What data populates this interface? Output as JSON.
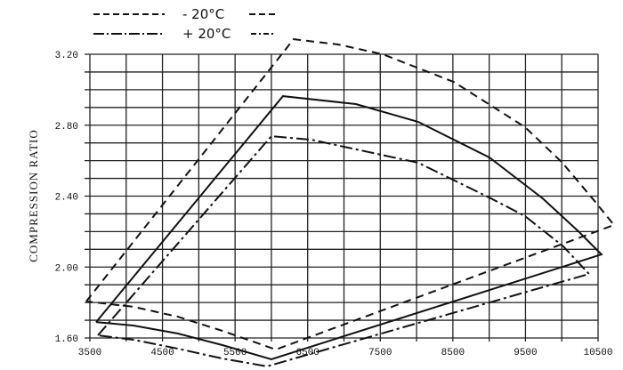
{
  "chart_data": {
    "type": "line",
    "title": "",
    "xlabel": "",
    "ylabel": "COMPRESSION RATIO",
    "xlim": [
      3500,
      10500
    ],
    "ylim": [
      1.6,
      3.2
    ],
    "x_ticks": [
      "3500",
      "4500",
      "5500",
      "6500",
      "7500",
      "8500",
      "9500",
      "10500"
    ],
    "y_ticks": [
      "1.60",
      "2.00",
      "2.40",
      "2.80",
      "3.20"
    ],
    "grid": true,
    "legend_position": "top",
    "legend": [
      {
        "label": "- 20°C",
        "style": "dashed"
      },
      {
        "label": "+ 20°C",
        "style": "dash-dot"
      }
    ],
    "color": "#111111",
    "series": [
      {
        "name": "- 20°C",
        "style": "dashed",
        "points": [
          [
            3450,
            1.806
          ],
          [
            6306,
            3.285
          ],
          [
            6919,
            3.255
          ],
          [
            7532,
            3.2
          ],
          [
            8512,
            3.044
          ],
          [
            9493,
            2.789
          ],
          [
            10008,
            2.588
          ],
          [
            10473,
            2.362
          ],
          [
            10718,
            2.237
          ],
          [
            6061,
            1.535
          ],
          [
            5326,
            1.64
          ],
          [
            4713,
            1.72
          ],
          [
            4100,
            1.776
          ],
          [
            3450,
            1.806
          ]
        ]
      },
      {
        "name": "",
        "style": "solid",
        "points": [
          [
            3586,
            1.69
          ],
          [
            6159,
            2.964
          ],
          [
            7164,
            2.919
          ],
          [
            8022,
            2.819
          ],
          [
            9002,
            2.618
          ],
          [
            9738,
            2.387
          ],
          [
            10228,
            2.202
          ],
          [
            10547,
            2.071
          ],
          [
            6000,
            1.48
          ],
          [
            5326,
            1.56
          ],
          [
            4713,
            1.625
          ],
          [
            4100,
            1.67
          ],
          [
            3586,
            1.69
          ]
        ]
      },
      {
        "name": "+ 20°C",
        "style": "dash-dot",
        "points": [
          [
            3610,
            1.615
          ],
          [
            6000,
            2.738
          ],
          [
            6552,
            2.718
          ],
          [
            8022,
            2.588
          ],
          [
            9002,
            2.392
          ],
          [
            9493,
            2.287
          ],
          [
            10020,
            2.117
          ],
          [
            10375,
            1.961
          ],
          [
            5939,
            1.44
          ],
          [
            5326,
            1.484
          ],
          [
            4713,
            1.54
          ],
          [
            4100,
            1.59
          ],
          [
            3610,
            1.615
          ]
        ]
      }
    ]
  }
}
